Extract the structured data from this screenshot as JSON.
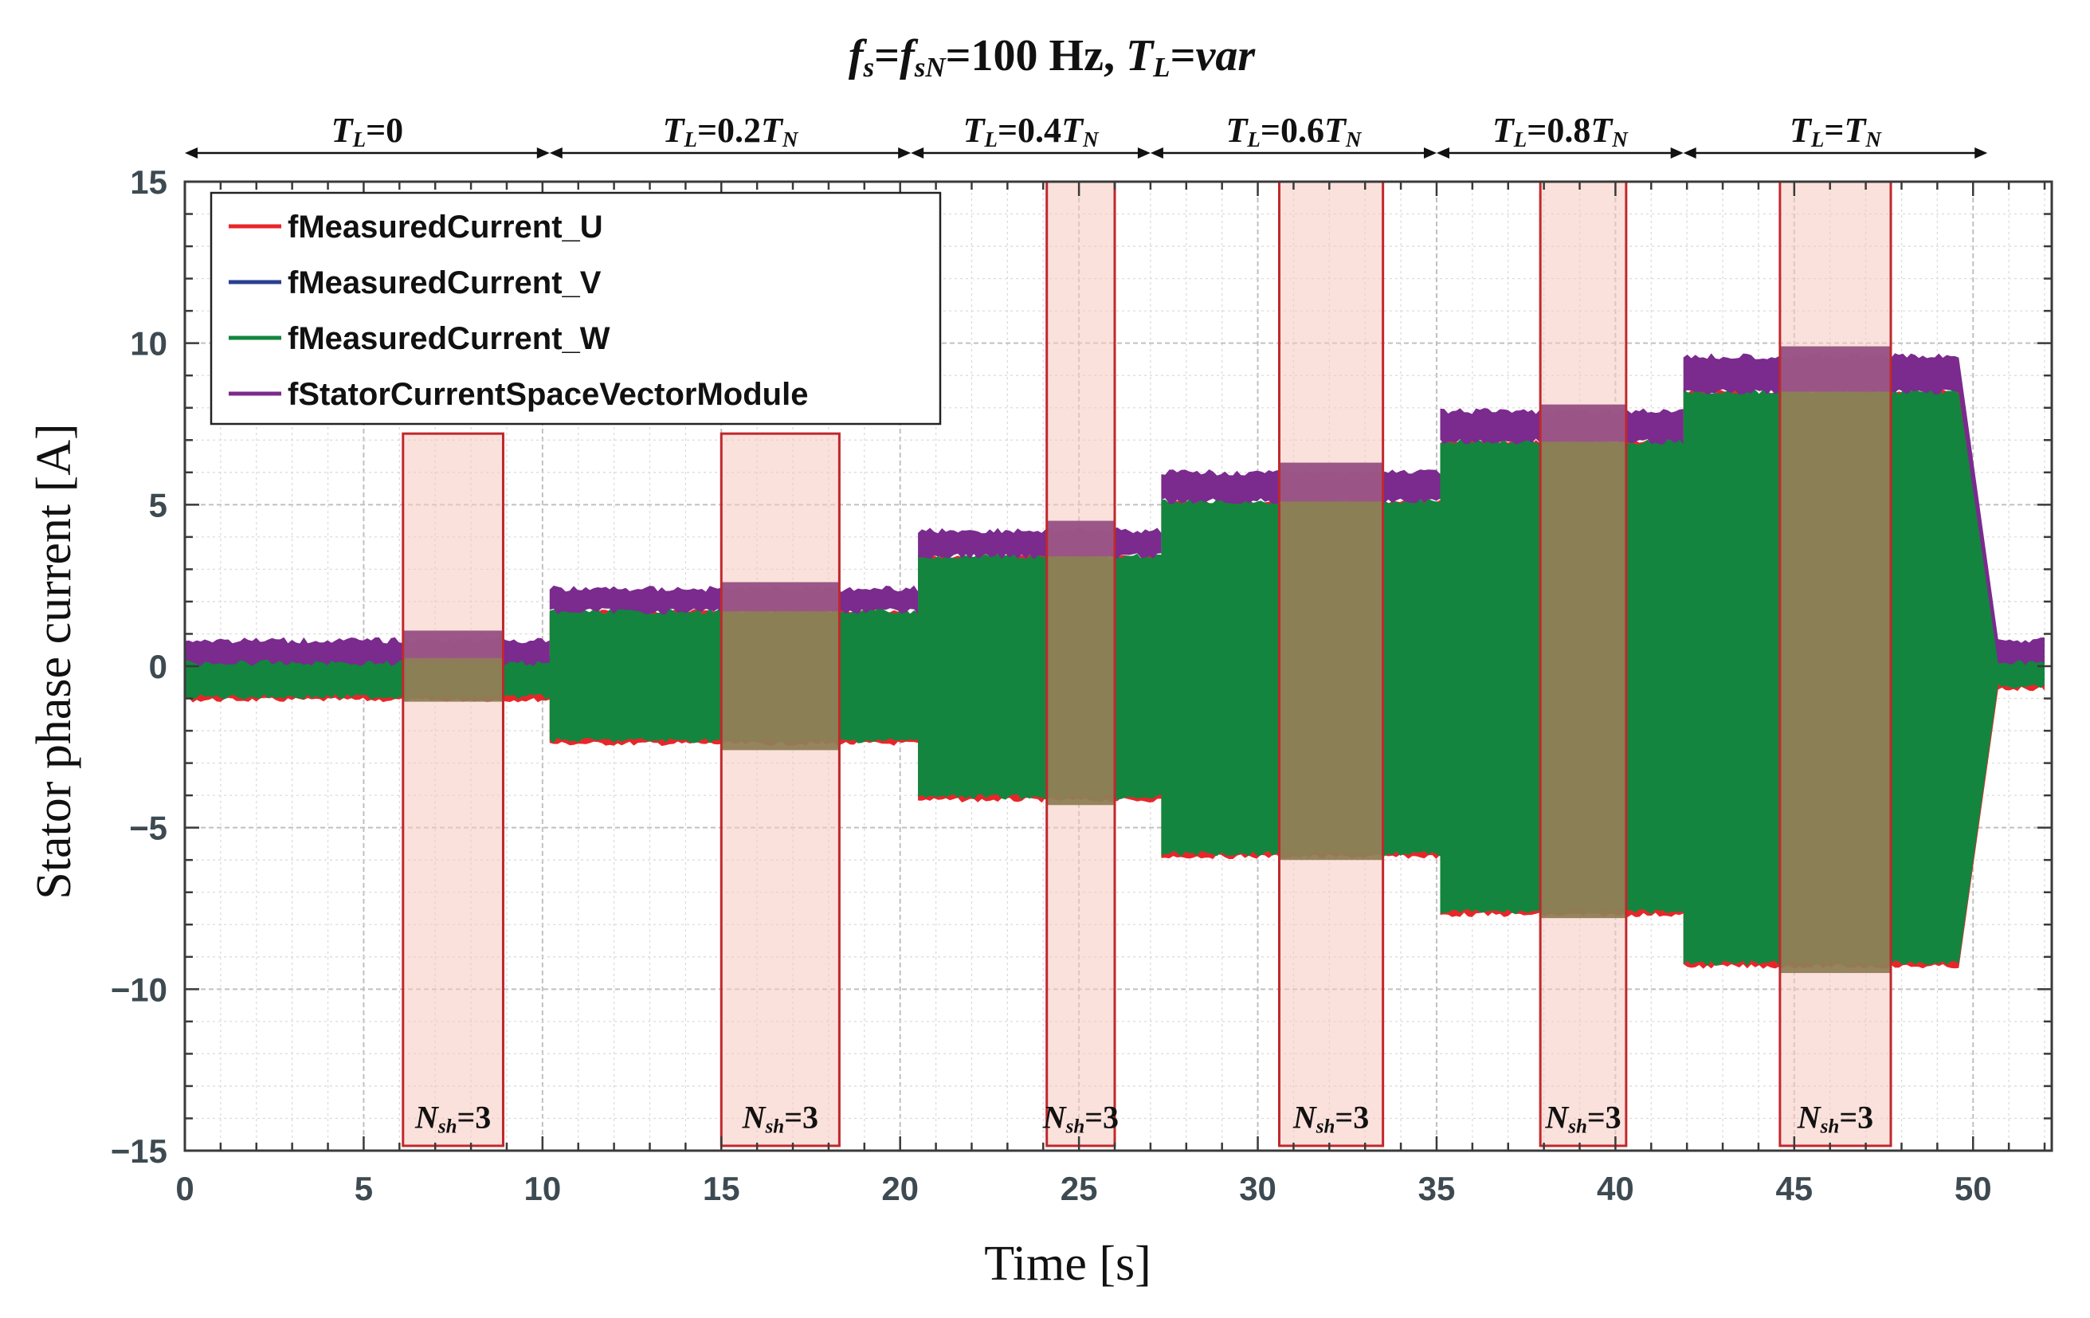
{
  "chart_data": {
    "type": "area",
    "title": {
      "parts": [
        {
          "t": "f",
          "i": true
        },
        {
          "t": "s",
          "i": true,
          "sub": true
        },
        {
          "t": "=",
          "i": false
        },
        {
          "t": "f",
          "i": true
        },
        {
          "t": "sN",
          "i": true,
          "sub": true
        },
        {
          "t": "=100 Hz, ",
          "i": false
        },
        {
          "t": "T",
          "i": true
        },
        {
          "t": "L",
          "i": true,
          "sub": true
        },
        {
          "t": "=",
          "i": false
        },
        {
          "t": "var",
          "i": true
        }
      ]
    },
    "xlabel": "Time [s]",
    "ylabel": "Stator phase current [A]",
    "xlim": [
      0,
      52.2
    ],
    "ylim": [
      -15,
      15
    ],
    "xticks": [
      0,
      5,
      10,
      15,
      20,
      25,
      30,
      35,
      40,
      45,
      50
    ],
    "yticks": [
      -15,
      -10,
      -5,
      0,
      5,
      10,
      15
    ],
    "ytick_labels": [
      "−15",
      "−10",
      "−5",
      "0",
      "5",
      "10",
      "15"
    ],
    "grid": true,
    "legend_position": "top-left",
    "series": [
      {
        "name": "fMeasuredCurrent_U",
        "color": "#e8262a"
      },
      {
        "name": "fMeasuredCurrent_V",
        "color": "#2a3f8f"
      },
      {
        "name": "fMeasuredCurrent_W",
        "color": "#13853e"
      },
      {
        "name": "fStatorCurrentSpaceVectorModule",
        "color": "#7b2a8e"
      }
    ],
    "segments": [
      {
        "x0": 0.0,
        "x1": 10.2,
        "peak": 0.8,
        "ac_max": 0.25,
        "ac_min": -0.95,
        "mod_lo": 0.1
      },
      {
        "x0": 10.2,
        "x1": 20.5,
        "peak": 2.4,
        "ac_max": 1.7,
        "ac_min": -2.3,
        "mod_lo": 1.7
      },
      {
        "x0": 20.5,
        "x1": 27.3,
        "peak": 4.2,
        "ac_max": 3.4,
        "ac_min": -4.05,
        "mod_lo": 3.4
      },
      {
        "x0": 27.3,
        "x1": 35.1,
        "peak": 6.0,
        "ac_max": 5.1,
        "ac_min": -5.8,
        "mod_lo": 5.1
      },
      {
        "x0": 35.1,
        "x1": 41.9,
        "peak": 7.9,
        "ac_max": 6.95,
        "ac_min": -7.6,
        "mod_lo": 6.95
      },
      {
        "x0": 41.9,
        "x1": 49.6,
        "peak": 9.6,
        "ac_max": 8.5,
        "ac_min": -9.2,
        "mod_lo": 8.5
      },
      {
        "x0": 50.7,
        "x1": 52.0,
        "peak": 0.8,
        "ac_max": 0.25,
        "ac_min": -0.6,
        "mod_lo": 0.1
      }
    ],
    "load_intervals": [
      {
        "x0": 0.0,
        "x1": 10.2,
        "label": [
          {
            "t": "T",
            "i": true
          },
          {
            "t": "L",
            "i": true,
            "sub": true
          },
          {
            "t": "=0",
            "i": false
          }
        ]
      },
      {
        "x0": 10.2,
        "x1": 20.3,
        "label": [
          {
            "t": "T",
            "i": true
          },
          {
            "t": "L",
            "i": true,
            "sub": true
          },
          {
            "t": "=0.2",
            "i": false
          },
          {
            "t": "T",
            "i": true
          },
          {
            "t": "N",
            "i": true,
            "sub": true
          }
        ]
      },
      {
        "x0": 20.3,
        "x1": 27.0,
        "label": [
          {
            "t": "T",
            "i": true
          },
          {
            "t": "L",
            "i": true,
            "sub": true
          },
          {
            "t": "=0.4",
            "i": false
          },
          {
            "t": "T",
            "i": true
          },
          {
            "t": "N",
            "i": true,
            "sub": true
          }
        ]
      },
      {
        "x0": 27.0,
        "x1": 35.0,
        "label": [
          {
            "t": "T",
            "i": true
          },
          {
            "t": "L",
            "i": true,
            "sub": true
          },
          {
            "t": "=0.6",
            "i": false
          },
          {
            "t": "T",
            "i": true
          },
          {
            "t": "N",
            "i": true,
            "sub": true
          }
        ]
      },
      {
        "x0": 35.0,
        "x1": 41.9,
        "label": [
          {
            "t": "T",
            "i": true
          },
          {
            "t": "L",
            "i": true,
            "sub": true
          },
          {
            "t": "=0.8",
            "i": false
          },
          {
            "t": "T",
            "i": true
          },
          {
            "t": "N",
            "i": true,
            "sub": true
          }
        ]
      },
      {
        "x0": 41.9,
        "x1": 50.4,
        "label": [
          {
            "t": "T",
            "i": true
          },
          {
            "t": "L",
            "i": true,
            "sub": true
          },
          {
            "t": "=",
            "i": false
          },
          {
            "t": "T",
            "i": true
          },
          {
            "t": "N",
            "i": true,
            "sub": true
          }
        ]
      }
    ],
    "highlight_windows": [
      {
        "x0": 6.1,
        "x1": 8.9,
        "y_top": 7.2,
        "band_top": 1.1,
        "band_bot": -1.1
      },
      {
        "x0": 15.0,
        "x1": 18.3,
        "y_top": 7.2,
        "band_top": 2.6,
        "band_bot": -2.6
      },
      {
        "x0": 24.1,
        "x1": 26.0,
        "y_top": 15.0,
        "band_top": 4.5,
        "band_bot": -4.3
      },
      {
        "x0": 30.6,
        "x1": 33.5,
        "y_top": 15.0,
        "band_top": 6.3,
        "band_bot": -6.0
      },
      {
        "x0": 37.9,
        "x1": 40.3,
        "y_top": 15.0,
        "band_top": 8.1,
        "band_bot": -7.8
      },
      {
        "x0": 44.6,
        "x1": 47.7,
        "y_top": 15.0,
        "band_top": 9.9,
        "band_bot": -9.5
      }
    ],
    "window_label": [
      {
        "t": "N",
        "i": true
      },
      {
        "t": "sh",
        "i": true,
        "sub": true
      },
      {
        "t": "=3",
        "i": false
      }
    ],
    "window_label_y": -13.9,
    "colors": {
      "module": "#7b2a8e",
      "phase_w": "#13853e",
      "phase_u": "#e8262a",
      "window_fill": "#f8c9c0",
      "window_stroke": "#c0282c",
      "band_fill": "#8a7a50",
      "band_top_fill": "#9c4f8e",
      "axis": "#3a3a3a",
      "tick_text": "#3d4a52",
      "grid_major": "#c0c0c0",
      "grid_minor": "#dcdcdc"
    }
  }
}
